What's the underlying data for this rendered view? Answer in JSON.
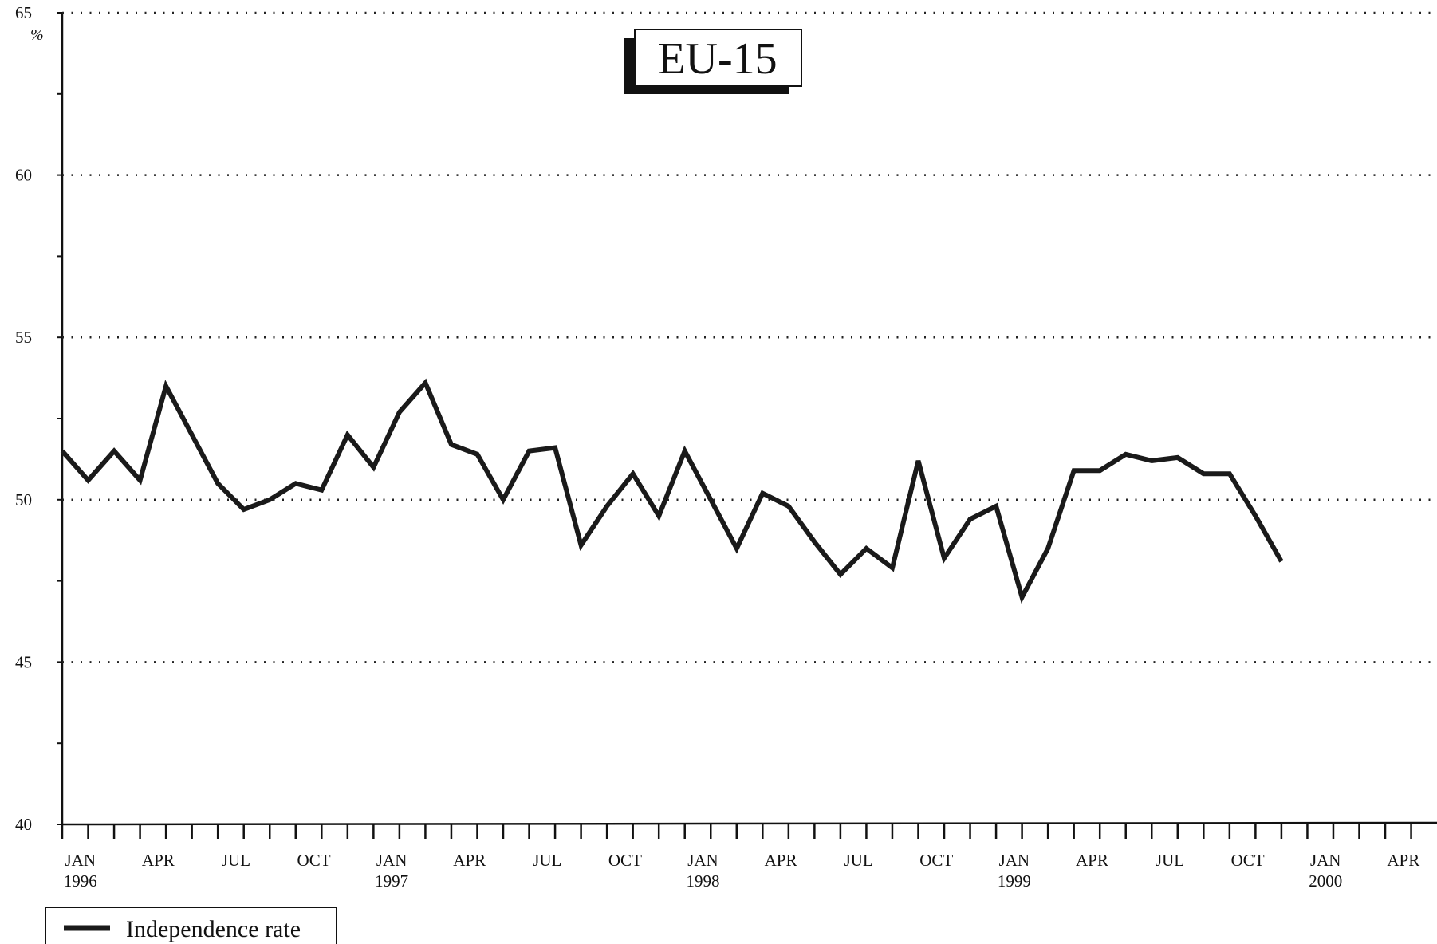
{
  "chart_data": {
    "type": "line",
    "title": "EU-15",
    "y_unit": "%",
    "categories": [
      "JAN",
      null,
      null,
      "APR",
      null,
      null,
      "JUL",
      null,
      null,
      "OCT",
      null,
      null,
      "JAN",
      null,
      null,
      "APR",
      null,
      null,
      "JUL",
      null,
      null,
      "OCT",
      null,
      null,
      "JAN",
      null,
      null,
      "APR",
      null,
      null,
      "JUL",
      null,
      null,
      "OCT",
      null,
      null,
      "JAN",
      null,
      null,
      "APR",
      null,
      null,
      "JUL",
      null,
      null,
      "OCT",
      null,
      null,
      "JAN",
      null,
      null,
      "APR"
    ],
    "years": [
      "1996",
      null,
      null,
      null,
      null,
      null,
      null,
      null,
      null,
      null,
      null,
      null,
      "1997",
      null,
      null,
      null,
      null,
      null,
      null,
      null,
      null,
      null,
      null,
      null,
      "1998",
      null,
      null,
      null,
      null,
      null,
      null,
      null,
      null,
      null,
      null,
      null,
      "1999",
      null,
      null,
      null,
      null,
      null,
      null,
      null,
      null,
      null,
      null,
      null,
      "2000",
      null,
      null,
      null
    ],
    "series": [
      {
        "name": "Independence rate",
        "color": "#1a1a1a",
        "values": [
          51.5,
          50.6,
          51.5,
          50.6,
          53.5,
          52.0,
          50.5,
          49.7,
          50.0,
          50.5,
          50.3,
          52.0,
          51.0,
          52.7,
          53.6,
          51.7,
          51.4,
          50.0,
          51.5,
          51.6,
          48.6,
          49.8,
          50.8,
          49.5,
          51.5,
          50.0,
          48.5,
          50.2,
          49.8,
          48.7,
          47.7,
          48.5,
          47.9,
          51.2,
          48.2,
          49.4,
          49.8,
          47.0,
          48.5,
          50.9,
          50.9,
          51.4,
          51.2,
          51.3,
          50.8,
          50.8,
          49.5,
          48.1,
          null,
          null,
          null,
          null
        ]
      }
    ],
    "ylim": [
      40,
      65
    ],
    "yticks": [
      40,
      45,
      50,
      55,
      60,
      65
    ],
    "grid": true
  }
}
